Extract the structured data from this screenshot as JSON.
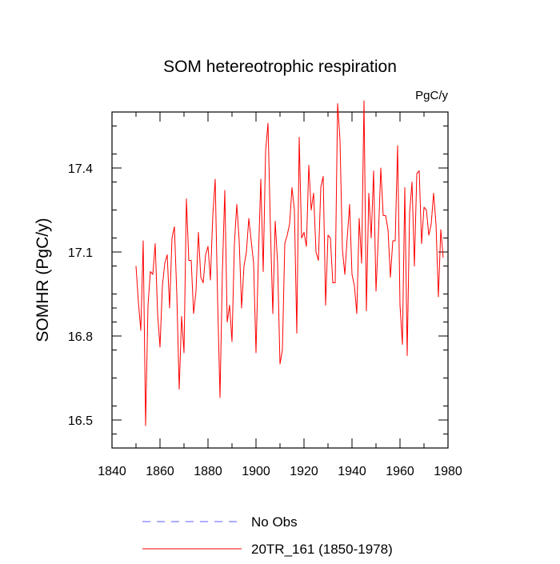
{
  "chart_data": {
    "type": "line",
    "title": "SOM hetereotrophic respiration",
    "units": "PgC/y",
    "ylabel": "SOMHR  (PgC/y)",
    "xlabel": "",
    "xlim": [
      1840,
      1980
    ],
    "ylim": [
      16.4,
      17.6
    ],
    "xticks": [
      1840,
      1860,
      1880,
      1900,
      1920,
      1940,
      1960,
      1980
    ],
    "yticks": [
      16.5,
      16.8,
      17.1,
      17.4
    ],
    "ytick_labels": [
      "16.5",
      "16.8",
      "17.1",
      "17.4"
    ],
    "legend": [
      {
        "label": "No Obs",
        "color": "#5b5bff",
        "style": "dashed"
      },
      {
        "label": "20TR_161 (1850-1978)",
        "color": "#ff0000",
        "style": "solid"
      }
    ],
    "series": [
      {
        "name": "20TR_161 (1850-1978)",
        "color": "#ff0000",
        "x": [
          1850,
          1851,
          1852,
          1853,
          1854,
          1855,
          1856,
          1857,
          1858,
          1859,
          1860,
          1861,
          1862,
          1863,
          1864,
          1865,
          1866,
          1867,
          1868,
          1869,
          1870,
          1871,
          1872,
          1873,
          1874,
          1875,
          1876,
          1877,
          1878,
          1879,
          1880,
          1881,
          1882,
          1883,
          1884,
          1885,
          1886,
          1887,
          1888,
          1889,
          1890,
          1891,
          1892,
          1893,
          1894,
          1895,
          1896,
          1897,
          1898,
          1899,
          1900,
          1901,
          1902,
          1903,
          1904,
          1905,
          1906,
          1907,
          1908,
          1909,
          1910,
          1911,
          1912,
          1913,
          1914,
          1915,
          1916,
          1917,
          1918,
          1919,
          1920,
          1921,
          1922,
          1923,
          1924,
          1925,
          1926,
          1927,
          1928,
          1929,
          1930,
          1931,
          1932,
          1933,
          1934,
          1935,
          1936,
          1937,
          1938,
          1939,
          1940,
          1941,
          1942,
          1943,
          1944,
          1945,
          1946,
          1947,
          1948,
          1949,
          1950,
          1951,
          1952,
          1953,
          1954,
          1955,
          1956,
          1957,
          1958,
          1959,
          1960,
          1961,
          1962,
          1963,
          1964,
          1965,
          1966,
          1967,
          1968,
          1969,
          1970,
          1971,
          1972,
          1973,
          1974,
          1975,
          1976,
          1977,
          1978
        ],
        "values": [
          17.05,
          16.92,
          16.82,
          17.14,
          16.48,
          16.91,
          17.03,
          17.02,
          17.13,
          16.88,
          16.76,
          16.98,
          17.06,
          17.09,
          16.9,
          17.15,
          17.19,
          16.95,
          16.61,
          16.87,
          16.74,
          17.29,
          17.07,
          17.07,
          16.88,
          16.96,
          17.17,
          17.01,
          16.99,
          17.09,
          17.12,
          17.0,
          17.23,
          17.36,
          16.93,
          16.58,
          17.03,
          17.32,
          16.85,
          16.91,
          16.78,
          17.13,
          17.27,
          17.14,
          16.9,
          17.05,
          17.1,
          17.22,
          17.14,
          17.06,
          16.74,
          17.08,
          17.36,
          17.03,
          17.46,
          17.56,
          17.19,
          16.88,
          17.21,
          17.06,
          16.7,
          16.75,
          17.13,
          17.16,
          17.2,
          17.33,
          17.25,
          16.81,
          17.51,
          17.15,
          17.17,
          17.12,
          17.41,
          17.25,
          17.31,
          17.1,
          17.07,
          17.33,
          17.37,
          16.91,
          17.16,
          17.15,
          16.99,
          16.99,
          17.63,
          17.5,
          17.11,
          17.02,
          17.15,
          17.27,
          17.02,
          16.98,
          16.88,
          17.22,
          17.06,
          17.64,
          16.89,
          17.31,
          17.15,
          17.39,
          16.96,
          17.16,
          17.4,
          17.23,
          17.23,
          17.18,
          17.01,
          17.14,
          17.14,
          17.48,
          16.91,
          16.77,
          17.33,
          16.73,
          17.24,
          17.35,
          17.05,
          17.38,
          17.39,
          17.13,
          17.26,
          17.25,
          17.16,
          17.2,
          17.31,
          17.2,
          16.94,
          17.18,
          17.08
        ]
      }
    ]
  }
}
